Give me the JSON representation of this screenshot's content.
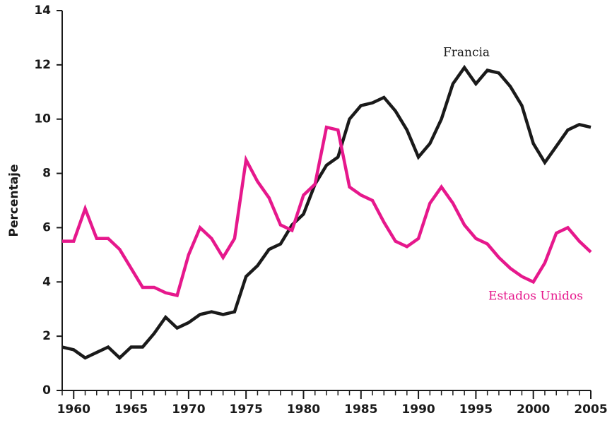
{
  "chart_data": {
    "type": "line",
    "y_label": "Percentaje",
    "x": [
      1959,
      1960,
      1961,
      1962,
      1963,
      1964,
      1965,
      1966,
      1967,
      1968,
      1969,
      1970,
      1971,
      1972,
      1973,
      1974,
      1975,
      1976,
      1977,
      1978,
      1979,
      1980,
      1981,
      1982,
      1983,
      1984,
      1985,
      1986,
      1987,
      1988,
      1989,
      1990,
      1991,
      1992,
      1993,
      1994,
      1995,
      1996,
      1997,
      1998,
      1999,
      2000,
      2001,
      2002,
      2003,
      2004,
      2005
    ],
    "series": [
      {
        "name": "Francia",
        "color": "#1a1a1a",
        "values": [
          1.6,
          1.5,
          1.2,
          1.4,
          1.6,
          1.2,
          1.6,
          1.6,
          2.1,
          2.7,
          2.3,
          2.5,
          2.8,
          2.9,
          2.8,
          2.9,
          4.2,
          4.6,
          5.2,
          5.4,
          6.1,
          6.5,
          7.6,
          8.3,
          8.6,
          10.0,
          10.5,
          10.6,
          10.8,
          10.3,
          9.6,
          8.6,
          9.1,
          10.0,
          11.3,
          11.9,
          11.3,
          11.8,
          11.7,
          11.2,
          10.5,
          9.1,
          8.4,
          9.0,
          9.6,
          9.8,
          9.7
        ]
      },
      {
        "name": "Estados Unidos",
        "color": "#e6188c",
        "values": [
          5.5,
          5.5,
          6.7,
          5.6,
          5.6,
          5.2,
          4.5,
          3.8,
          3.8,
          3.6,
          3.5,
          5.0,
          6.0,
          5.6,
          4.9,
          5.6,
          8.5,
          7.7,
          7.1,
          6.1,
          5.9,
          7.2,
          7.6,
          9.7,
          9.6,
          7.5,
          7.2,
          7.0,
          6.2,
          5.5,
          5.3,
          5.6,
          6.9,
          7.5,
          6.9,
          6.1,
          5.6,
          5.4,
          4.9,
          4.5,
          4.2,
          4.0,
          4.7,
          5.8,
          6.0,
          5.5,
          5.1
        ]
      }
    ],
    "xlim": [
      1959,
      2005
    ],
    "xticks": [
      1960,
      1965,
      1970,
      1975,
      1980,
      1985,
      1990,
      1995,
      2000,
      2005
    ],
    "ylim": [
      0,
      14
    ],
    "yticks": [
      0,
      2,
      4,
      6,
      8,
      10,
      12,
      14
    ],
    "grid": false
  }
}
